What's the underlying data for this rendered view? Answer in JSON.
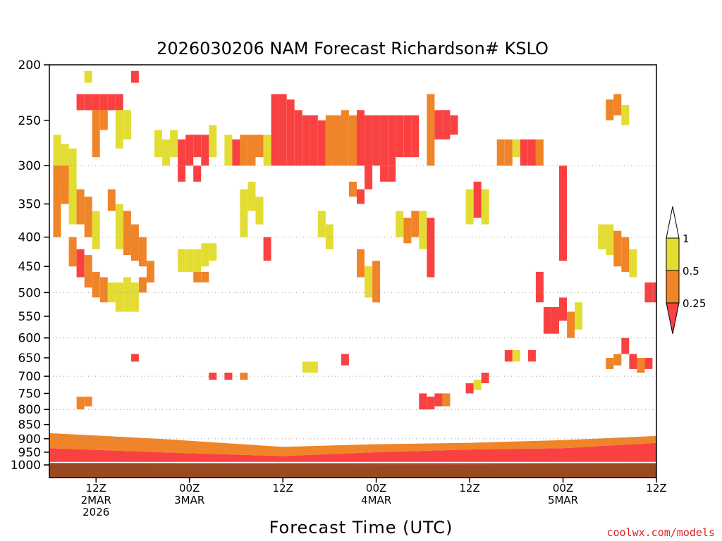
{
  "chart_data": {
    "type": "heatmap",
    "title": "2026030206 NAM Forecast Richardson# KSLO",
    "xlabel": "Forecast Time (UTC)",
    "ylabel": "",
    "yscale": "log-pressure",
    "ylim": [
      1000,
      200
    ],
    "y_ticks": [
      "200",
      "250",
      "300",
      "350",
      "400",
      "450",
      "500",
      "550",
      "600",
      "650",
      "700",
      "750",
      "800",
      "850",
      "900",
      "950",
      "1000"
    ],
    "y_gridlines": [
      300,
      400,
      500,
      600,
      700,
      800,
      900
    ],
    "grid": "dotted horizontal lines",
    "x_range_hours": [
      6,
      84
    ],
    "x_ticks": [
      {
        "h": 12,
        "label": "12Z",
        "date": "2MAR",
        "year": "2026"
      },
      {
        "h": 24,
        "label": "00Z",
        "date": "3MAR",
        "year": ""
      },
      {
        "h": 36,
        "label": "12Z",
        "date": "",
        "year": ""
      },
      {
        "h": 48,
        "label": "00Z",
        "date": "4MAR",
        "year": ""
      },
      {
        "h": 60,
        "label": "12Z",
        "date": "",
        "year": ""
      },
      {
        "h": 72,
        "label": "00Z",
        "date": "5MAR",
        "year": ""
      },
      {
        "h": 84,
        "label": "12Z",
        "date": "",
        "year": ""
      }
    ],
    "legend": {
      "placement": "right",
      "levels": [
        "1",
        "0.5",
        "0.25"
      ],
      "bins": [
        {
          "range": "> 1",
          "color": "#ffffff"
        },
        {
          "range": "0.5 - 1",
          "color": "#e3dc33"
        },
        {
          "range": "0.25 - 0.5",
          "color": "#f08428"
        },
        {
          "range": "< 0.25",
          "color": "#fa4141"
        }
      ]
    },
    "colors": {
      "yellow": "#e3dc33",
      "orange": "#f08428",
      "red": "#fa4141",
      "ground": "#9a4a22"
    },
    "cells": [
      {
        "t": 11,
        "p": [
          205,
          215
        ],
        "c": "y"
      },
      {
        "t": 17,
        "p": [
          205,
          215
        ],
        "c": "r"
      },
      {
        "t": 10,
        "p": [
          225,
          240
        ],
        "c": "r"
      },
      {
        "t": 11,
        "p": [
          225,
          240
        ],
        "c": "r"
      },
      {
        "t": 12,
        "p": [
          225,
          240
        ],
        "c": "r"
      },
      {
        "t": 13,
        "p": [
          225,
          240
        ],
        "c": "r"
      },
      {
        "t": 14,
        "p": [
          225,
          240
        ],
        "c": "r"
      },
      {
        "t": 15,
        "p": [
          225,
          240
        ],
        "c": "r"
      },
      {
        "t": 12,
        "p": [
          240,
          290
        ],
        "c": "o"
      },
      {
        "t": 13,
        "p": [
          240,
          260
        ],
        "c": "o"
      },
      {
        "t": 15,
        "p": [
          240,
          280
        ],
        "c": "y"
      },
      {
        "t": 16,
        "p": [
          240,
          270
        ],
        "c": "y"
      },
      {
        "t": 7,
        "p": [
          265,
          300
        ],
        "c": "y"
      },
      {
        "t": 8,
        "p": [
          275,
          320
        ],
        "c": "y"
      },
      {
        "t": 9,
        "p": [
          280,
          330
        ],
        "c": "y"
      },
      {
        "t": 7,
        "p": [
          300,
          400
        ],
        "c": "o"
      },
      {
        "t": 8,
        "p": [
          300,
          350
        ],
        "c": "o"
      },
      {
        "t": 9,
        "p": [
          320,
          380
        ],
        "c": "y"
      },
      {
        "t": 10,
        "p": [
          330,
          380
        ],
        "c": "o"
      },
      {
        "t": 11,
        "p": [
          340,
          400
        ],
        "c": "o"
      },
      {
        "t": 12,
        "p": [
          360,
          420
        ],
        "c": "y"
      },
      {
        "t": 14,
        "p": [
          330,
          360
        ],
        "c": "o"
      },
      {
        "t": 15,
        "p": [
          350,
          420
        ],
        "c": "y"
      },
      {
        "t": 16,
        "p": [
          360,
          430
        ],
        "c": "o"
      },
      {
        "t": 17,
        "p": [
          380,
          440
        ],
        "c": "o"
      },
      {
        "t": 18,
        "p": [
          400,
          450
        ],
        "c": "o"
      },
      {
        "t": 9,
        "p": [
          400,
          450
        ],
        "c": "o"
      },
      {
        "t": 10,
        "p": [
          420,
          470
        ],
        "c": "r"
      },
      {
        "t": 11,
        "p": [
          430,
          490
        ],
        "c": "o"
      },
      {
        "t": 12,
        "p": [
          460,
          510
        ],
        "c": "o"
      },
      {
        "t": 13,
        "p": [
          470,
          520
        ],
        "c": "o"
      },
      {
        "t": 14,
        "p": [
          480,
          520
        ],
        "c": "y"
      },
      {
        "t": 15,
        "p": [
          480,
          540
        ],
        "c": "y"
      },
      {
        "t": 16,
        "p": [
          470,
          540
        ],
        "c": "y"
      },
      {
        "t": 17,
        "p": [
          480,
          540
        ],
        "c": "y"
      },
      {
        "t": 18,
        "p": [
          470,
          500
        ],
        "c": "o"
      },
      {
        "t": 19,
        "p": [
          440,
          480
        ],
        "c": "o"
      },
      {
        "t": 20,
        "p": [
          260,
          290
        ],
        "c": "y"
      },
      {
        "t": 21,
        "p": [
          270,
          300
        ],
        "c": "y"
      },
      {
        "t": 22,
        "p": [
          260,
          290
        ],
        "c": "y"
      },
      {
        "t": 23,
        "p": [
          270,
          300
        ],
        "c": "r"
      },
      {
        "t": 24,
        "p": [
          265,
          300
        ],
        "c": "r"
      },
      {
        "t": 25,
        "p": [
          265,
          290
        ],
        "c": "r"
      },
      {
        "t": 26,
        "p": [
          265,
          300
        ],
        "c": "r"
      },
      {
        "t": 27,
        "p": [
          255,
          290
        ],
        "c": "y"
      },
      {
        "t": 23,
        "p": [
          300,
          320
        ],
        "c": "r"
      },
      {
        "t": 25,
        "p": [
          300,
          320
        ],
        "c": "r"
      },
      {
        "t": 23,
        "p": [
          420,
          460
        ],
        "c": "y"
      },
      {
        "t": 24,
        "p": [
          420,
          460
        ],
        "c": "y"
      },
      {
        "t": 25,
        "p": [
          420,
          460
        ],
        "c": "y"
      },
      {
        "t": 26,
        "p": [
          410,
          450
        ],
        "c": "y"
      },
      {
        "t": 27,
        "p": [
          410,
          440
        ],
        "c": "y"
      },
      {
        "t": 25,
        "p": [
          460,
          480
        ],
        "c": "o"
      },
      {
        "t": 26,
        "p": [
          460,
          480
        ],
        "c": "o"
      },
      {
        "t": 29,
        "p": [
          265,
          300
        ],
        "c": "y"
      },
      {
        "t": 30,
        "p": [
          270,
          300
        ],
        "c": "r"
      },
      {
        "t": 31,
        "p": [
          265,
          300
        ],
        "c": "o"
      },
      {
        "t": 32,
        "p": [
          265,
          300
        ],
        "c": "o"
      },
      {
        "t": 33,
        "p": [
          265,
          290
        ],
        "c": "o"
      },
      {
        "t": 34,
        "p": [
          265,
          300
        ],
        "c": "y"
      },
      {
        "t": 31,
        "p": [
          330,
          400
        ],
        "c": "y"
      },
      {
        "t": 32,
        "p": [
          320,
          360
        ],
        "c": "y"
      },
      {
        "t": 33,
        "p": [
          340,
          380
        ],
        "c": "y"
      },
      {
        "t": 34,
        "p": [
          400,
          440
        ],
        "c": "r"
      },
      {
        "t": 35,
        "p": [
          225,
          300
        ],
        "c": "r"
      },
      {
        "t": 36,
        "p": [
          225,
          300
        ],
        "c": "r"
      },
      {
        "t": 37,
        "p": [
          230,
          300
        ],
        "c": "r"
      },
      {
        "t": 38,
        "p": [
          240,
          300
        ],
        "c": "r"
      },
      {
        "t": 39,
        "p": [
          245,
          300
        ],
        "c": "r"
      },
      {
        "t": 40,
        "p": [
          245,
          300
        ],
        "c": "r"
      },
      {
        "t": 41,
        "p": [
          250,
          300
        ],
        "c": "r"
      },
      {
        "t": 42,
        "p": [
          245,
          300
        ],
        "c": "o"
      },
      {
        "t": 43,
        "p": [
          245,
          300
        ],
        "c": "o"
      },
      {
        "t": 44,
        "p": [
          240,
          300
        ],
        "c": "o"
      },
      {
        "t": 45,
        "p": [
          245,
          300
        ],
        "c": "o"
      },
      {
        "t": 46,
        "p": [
          240,
          300
        ],
        "c": "r"
      },
      {
        "t": 47,
        "p": [
          245,
          300
        ],
        "c": "r"
      },
      {
        "t": 48,
        "p": [
          245,
          300
        ],
        "c": "r"
      },
      {
        "t": 49,
        "p": [
          245,
          300
        ],
        "c": "r"
      },
      {
        "t": 50,
        "p": [
          245,
          300
        ],
        "c": "r"
      },
      {
        "t": 51,
        "p": [
          245,
          290
        ],
        "c": "r"
      },
      {
        "t": 52,
        "p": [
          245,
          290
        ],
        "c": "r"
      },
      {
        "t": 53,
        "p": [
          245,
          290
        ],
        "c": "r"
      },
      {
        "t": 47,
        "p": [
          300,
          330
        ],
        "c": "r"
      },
      {
        "t": 49,
        "p": [
          300,
          320
        ],
        "c": "r"
      },
      {
        "t": 50,
        "p": [
          300,
          320
        ],
        "c": "r"
      },
      {
        "t": 55,
        "p": [
          225,
          300
        ],
        "c": "o"
      },
      {
        "t": 56,
        "p": [
          240,
          270
        ],
        "c": "r"
      },
      {
        "t": 57,
        "p": [
          240,
          270
        ],
        "c": "r"
      },
      {
        "t": 58,
        "p": [
          245,
          265
        ],
        "c": "r"
      },
      {
        "t": 45,
        "p": [
          320,
          340
        ],
        "c": "o"
      },
      {
        "t": 46,
        "p": [
          330,
          350
        ],
        "c": "r"
      },
      {
        "t": 41,
        "p": [
          360,
          400
        ],
        "c": "y"
      },
      {
        "t": 42,
        "p": [
          380,
          420
        ],
        "c": "y"
      },
      {
        "t": 51,
        "p": [
          360,
          400
        ],
        "c": "y"
      },
      {
        "t": 52,
        "p": [
          370,
          410
        ],
        "c": "o"
      },
      {
        "t": 53,
        "p": [
          360,
          400
        ],
        "c": "o"
      },
      {
        "t": 54,
        "p": [
          360,
          420
        ],
        "c": "y"
      },
      {
        "t": 55,
        "p": [
          370,
          470
        ],
        "c": "r"
      },
      {
        "t": 46,
        "p": [
          420,
          470
        ],
        "c": "o"
      },
      {
        "t": 47,
        "p": [
          450,
          510
        ],
        "c": "y"
      },
      {
        "t": 48,
        "p": [
          440,
          520
        ],
        "c": "o"
      },
      {
        "t": 61,
        "p": [
          320,
          370
        ],
        "c": "r"
      },
      {
        "t": 60,
        "p": [
          330,
          380
        ],
        "c": "y"
      },
      {
        "t": 62,
        "p": [
          330,
          380
        ],
        "c": "y"
      },
      {
        "t": 64,
        "p": [
          270,
          300
        ],
        "c": "o"
      },
      {
        "t": 65,
        "p": [
          270,
          300
        ],
        "c": "o"
      },
      {
        "t": 66,
        "p": [
          270,
          290
        ],
        "c": "y"
      },
      {
        "t": 67,
        "p": [
          270,
          300
        ],
        "c": "r"
      },
      {
        "t": 68,
        "p": [
          270,
          300
        ],
        "c": "r"
      },
      {
        "t": 69,
        "p": [
          270,
          300
        ],
        "c": "o"
      },
      {
        "t": 72,
        "p": [
          300,
          440
        ],
        "c": "r"
      },
      {
        "t": 69,
        "p": [
          460,
          520
        ],
        "c": "r"
      },
      {
        "t": 70,
        "p": [
          530,
          590
        ],
        "c": "r"
      },
      {
        "t": 71,
        "p": [
          530,
          590
        ],
        "c": "r"
      },
      {
        "t": 72,
        "p": [
          510,
          560
        ],
        "c": "r"
      },
      {
        "t": 73,
        "p": [
          540,
          600
        ],
        "c": "o"
      },
      {
        "t": 74,
        "p": [
          520,
          580
        ],
        "c": "y"
      },
      {
        "t": 77,
        "p": [
          380,
          420
        ],
        "c": "y"
      },
      {
        "t": 78,
        "p": [
          380,
          430
        ],
        "c": "y"
      },
      {
        "t": 79,
        "p": [
          390,
          450
        ],
        "c": "o"
      },
      {
        "t": 80,
        "p": [
          400,
          460
        ],
        "c": "o"
      },
      {
        "t": 81,
        "p": [
          420,
          470
        ],
        "c": "y"
      },
      {
        "t": 78,
        "p": [
          230,
          250
        ],
        "c": "o"
      },
      {
        "t": 79,
        "p": [
          225,
          245
        ],
        "c": "o"
      },
      {
        "t": 80,
        "p": [
          235,
          255
        ],
        "c": "y"
      },
      {
        "t": 83,
        "p": [
          480,
          520
        ],
        "c": "r"
      },
      {
        "t": 84,
        "p": [
          480,
          520
        ],
        "c": "r"
      },
      {
        "t": 10,
        "p": [
          760,
          800
        ],
        "c": "o"
      },
      {
        "t": 11,
        "p": [
          760,
          790
        ],
        "c": "o"
      },
      {
        "t": 17,
        "p": [
          640,
          660
        ],
        "c": "r"
      },
      {
        "t": 27,
        "p": [
          690,
          710
        ],
        "c": "r"
      },
      {
        "t": 29,
        "p": [
          690,
          710
        ],
        "c": "r"
      },
      {
        "t": 31,
        "p": [
          690,
          710
        ],
        "c": "o"
      },
      {
        "t": 39,
        "p": [
          660,
          690
        ],
        "c": "y"
      },
      {
        "t": 40,
        "p": [
          660,
          690
        ],
        "c": "y"
      },
      {
        "t": 44,
        "p": [
          640,
          670
        ],
        "c": "r"
      },
      {
        "t": 54,
        "p": [
          750,
          800
        ],
        "c": "r"
      },
      {
        "t": 55,
        "p": [
          760,
          800
        ],
        "c": "r"
      },
      {
        "t": 56,
        "p": [
          750,
          790
        ],
        "c": "r"
      },
      {
        "t": 57,
        "p": [
          750,
          790
        ],
        "c": "o"
      },
      {
        "t": 60,
        "p": [
          720,
          750
        ],
        "c": "r"
      },
      {
        "t": 61,
        "p": [
          710,
          740
        ],
        "c": "y"
      },
      {
        "t": 62,
        "p": [
          690,
          720
        ],
        "c": "r"
      },
      {
        "t": 65,
        "p": [
          630,
          660
        ],
        "c": "r"
      },
      {
        "t": 66,
        "p": [
          630,
          660
        ],
        "c": "y"
      },
      {
        "t": 68,
        "p": [
          630,
          660
        ],
        "c": "r"
      },
      {
        "t": 78,
        "p": [
          650,
          680
        ],
        "c": "o"
      },
      {
        "t": 79,
        "p": [
          640,
          670
        ],
        "c": "o"
      },
      {
        "t": 80,
        "p": [
          600,
          640
        ],
        "c": "r"
      },
      {
        "t": 81,
        "p": [
          640,
          680
        ],
        "c": "r"
      },
      {
        "t": 82,
        "p": [
          650,
          690
        ],
        "c": "o"
      },
      {
        "t": 83,
        "p": [
          650,
          680
        ],
        "c": "r"
      }
    ]
  },
  "credit": "coolwx.com/models"
}
